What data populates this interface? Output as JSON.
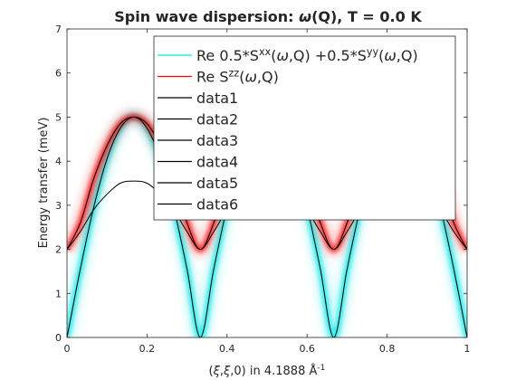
{
  "chart_data": {
    "type": "line",
    "title_parts": [
      "Spin wave dispersion: ",
      "ω",
      "(Q), T =   0.0 K"
    ],
    "xlabel_parts": [
      "(",
      "ξ",
      ",",
      "ξ",
      ",0) in 4.1888 Å",
      "-1"
    ],
    "ylabel": "Energy transfer (meV)",
    "xlim": [
      0,
      1
    ],
    "ylim": [
      0,
      7
    ],
    "xticks": [
      0,
      0.2,
      0.4,
      0.6,
      0.8,
      1
    ],
    "yticks": [
      0,
      1,
      2,
      3,
      4,
      5,
      6,
      7
    ],
    "xtick_labels": [
      "0",
      "0.2",
      "0.4",
      "0.6",
      "0.8",
      "1"
    ],
    "ytick_labels": [
      "0",
      "1",
      "2",
      "3",
      "4",
      "5",
      "6",
      "7"
    ],
    "grid": false,
    "legend_position": "top-right",
    "legend": [
      {
        "parts": [
          "Re 0.5*S",
          "xx",
          "(",
          "ω",
          ",Q) +0.5*S",
          "yy",
          "(",
          "ω",
          ",Q)"
        ],
        "sup": [
          1,
          5
        ],
        "italic": [
          3,
          7
        ],
        "color": "#00e5e5"
      },
      {
        "parts": [
          "Re S",
          "zz",
          "(",
          "ω",
          ",Q)"
        ],
        "sup": [
          1
        ],
        "italic": [
          3
        ],
        "color": "#ff0000"
      },
      {
        "parts": [
          "data1"
        ],
        "sup": [],
        "italic": [],
        "color": "#000000"
      },
      {
        "parts": [
          "data2"
        ],
        "sup": [],
        "italic": [],
        "color": "#000000"
      },
      {
        "parts": [
          "data3"
        ],
        "sup": [],
        "italic": [],
        "color": "#000000"
      },
      {
        "parts": [
          "data4"
        ],
        "sup": [],
        "italic": [],
        "color": "#000000"
      },
      {
        "parts": [
          "data5"
        ],
        "sup": [],
        "italic": [],
        "color": "#000000"
      },
      {
        "parts": [
          "data6"
        ],
        "sup": [],
        "italic": [],
        "color": "#000000"
      }
    ],
    "series": [
      {
        "name": "data1",
        "color": "#000000",
        "kind": "line",
        "x": [
          0,
          0.0333,
          0.0667,
          0.1,
          0.1333,
          0.1667,
          0.2,
          0.2333,
          0.2667,
          0.3,
          0.3333,
          0.3667,
          0.4,
          0.4333,
          0.4667,
          0.5,
          0.5333,
          0.5667,
          0.6,
          0.6333,
          0.6667,
          0.7,
          0.7333,
          0.7667,
          0.8,
          0.8333,
          0.8667,
          0.9,
          0.9333,
          0.9667,
          1
        ],
        "y": [
          0,
          1.55,
          2.95,
          4.05,
          4.75,
          5.0,
          4.75,
          4.05,
          2.95,
          1.55,
          0,
          1.55,
          2.95,
          4.05,
          4.75,
          5.0,
          4.75,
          4.05,
          2.95,
          1.55,
          0,
          1.55,
          2.95,
          4.05,
          4.75,
          5.0,
          4.75,
          4.05,
          2.95,
          1.55,
          0
        ]
      },
      {
        "name": "data2",
        "color": "#000000",
        "kind": "line",
        "x": [
          0,
          0.0333,
          0.0667,
          0.1,
          0.1333,
          0.1667,
          0.2,
          0.2333,
          0.2667,
          0.3,
          0.3333,
          0.3667,
          0.4,
          0.4333,
          0.4667,
          0.5,
          0.5333,
          0.5667,
          0.6,
          0.6333,
          0.6667,
          0.7,
          0.7333,
          0.7667,
          0.8,
          0.8333,
          0.8667,
          0.9,
          0.9333,
          0.9667,
          1
        ],
        "y": [
          2.0,
          2.4,
          2.9,
          3.25,
          3.5,
          3.55,
          3.5,
          3.25,
          2.9,
          2.4,
          2.0,
          2.4,
          2.9,
          3.25,
          3.5,
          3.55,
          3.5,
          3.25,
          2.9,
          2.4,
          2.0,
          2.4,
          2.9,
          3.25,
          3.5,
          3.55,
          3.5,
          3.25,
          2.9,
          2.4,
          2.0
        ]
      },
      {
        "name": "data3",
        "color": "#000000",
        "kind": "line",
        "x": [
          0,
          0.0333,
          0.0667,
          0.1,
          0.1333,
          0.1667,
          0.2,
          0.2333,
          0.2667,
          0.3,
          0.3333,
          0.3667,
          0.4,
          0.4333,
          0.4667,
          0.5,
          0.5333,
          0.5667,
          0.6,
          0.6333,
          0.6667,
          0.7,
          0.7333,
          0.7667,
          0.8,
          0.8333,
          0.8667,
          0.9,
          0.9333,
          0.9667,
          1
        ],
        "y": [
          2.0,
          2.6,
          3.6,
          4.35,
          4.85,
          5.0,
          4.85,
          4.35,
          3.6,
          2.6,
          2.0,
          2.6,
          3.6,
          4.35,
          4.85,
          5.0,
          4.85,
          4.35,
          3.6,
          2.6,
          2.0,
          2.6,
          3.6,
          4.35,
          4.85,
          5.0,
          4.85,
          4.35,
          3.6,
          2.6,
          2.0
        ]
      },
      {
        "name": "Re 0.5*Sxx(w,Q) +0.5*Syy(w,Q)",
        "color": "#00e5e5",
        "kind": "band",
        "x": [
          0,
          0.0333,
          0.0667,
          0.1,
          0.1333,
          0.1667,
          0.2,
          0.2333,
          0.2667,
          0.3,
          0.3333,
          0.3667,
          0.4,
          0.4333,
          0.4667,
          0.5,
          0.5333,
          0.5667,
          0.6,
          0.6333,
          0.6667,
          0.7,
          0.7333,
          0.7667,
          0.8,
          0.8333,
          0.8667,
          0.9,
          0.9333,
          0.9667,
          1
        ],
        "y": [
          0,
          1.55,
          2.95,
          4.05,
          4.75,
          5.0,
          4.75,
          4.05,
          2.95,
          1.55,
          0,
          1.55,
          2.95,
          4.05,
          4.75,
          5.0,
          4.75,
          4.05,
          2.95,
          1.55,
          0,
          1.55,
          2.95,
          4.05,
          4.75,
          5.0,
          4.75,
          4.05,
          2.95,
          1.55,
          0
        ]
      },
      {
        "name": "Re Szz(w,Q)",
        "color": "#ff0000",
        "kind": "band",
        "x": [
          0,
          0.0333,
          0.0667,
          0.1,
          0.1333,
          0.1667,
          0.2,
          0.2333,
          0.2667,
          0.3,
          0.3333,
          0.3667,
          0.4,
          0.4333,
          0.4667,
          0.5,
          0.5333,
          0.5667,
          0.6,
          0.6333,
          0.6667,
          0.7,
          0.7333,
          0.7667,
          0.8,
          0.8333,
          0.8667,
          0.9,
          0.9333,
          0.9667,
          1
        ],
        "y": [
          2.0,
          2.6,
          3.6,
          4.35,
          4.85,
          5.0,
          4.85,
          4.35,
          3.6,
          2.6,
          2.0,
          2.6,
          3.6,
          4.35,
          4.85,
          5.0,
          4.85,
          4.35,
          3.6,
          2.6,
          2.0,
          2.6,
          3.6,
          4.35,
          4.85,
          5.0,
          4.85,
          4.35,
          3.6,
          2.6,
          2.0
        ]
      }
    ]
  }
}
